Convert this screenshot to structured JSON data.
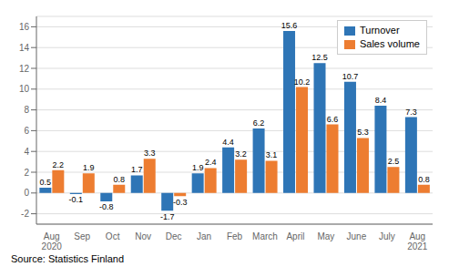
{
  "chart_data": {
    "type": "bar",
    "categories": [
      "Aug\n2020",
      "Sep",
      "Oct",
      "Nov",
      "Dec",
      "Jan",
      "Feb",
      "March",
      "April",
      "May",
      "June",
      "July",
      "Aug\n2021"
    ],
    "series": [
      {
        "name": "Turnover",
        "color": "#2e75b6",
        "values": [
          0.5,
          -0.1,
          -0.8,
          1.7,
          -1.7,
          1.9,
          4.4,
          6.2,
          15.6,
          12.5,
          10.7,
          8.4,
          7.3
        ]
      },
      {
        "name": "Sales volume",
        "color": "#ed7d31",
        "values": [
          2.2,
          1.9,
          0.8,
          3.3,
          -0.3,
          2.4,
          3.2,
          3.1,
          10.2,
          6.6,
          5.3,
          2.5,
          0.8
        ]
      }
    ],
    "ylim": [
      -3,
      17
    ],
    "yticks": [
      -2,
      0,
      2,
      4,
      6,
      8,
      10,
      12,
      14,
      16
    ],
    "grid": true,
    "legend": "upper right",
    "data_labels": true,
    "annotations": [
      "Source: Statistics Finland"
    ]
  }
}
